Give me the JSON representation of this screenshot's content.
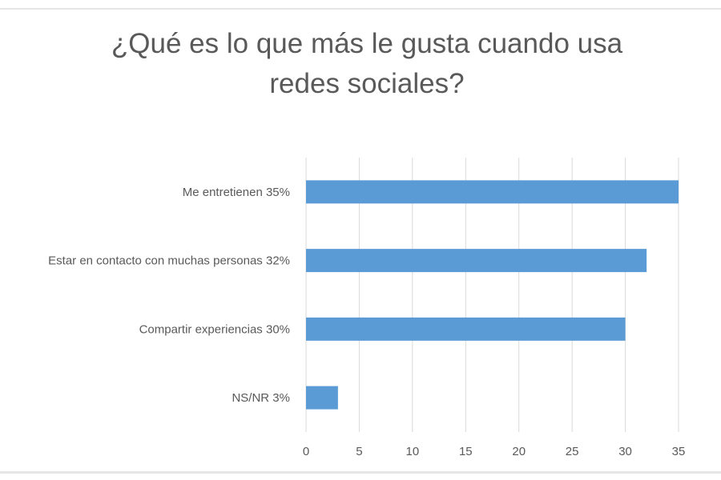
{
  "chart_data": {
    "type": "bar",
    "orientation": "horizontal",
    "title_lines": [
      "¿Qué es lo que más le gusta cuando usa",
      "redes sociales?"
    ],
    "categories": [
      "Me entretienen  35%",
      "Estar en contacto con muchas personas  32%",
      "Compartir experiencias  30%",
      "NS/NR  3%"
    ],
    "values": [
      35,
      32,
      30,
      3
    ],
    "xlim": [
      0,
      35
    ],
    "xticks": [
      "0",
      "5",
      "10",
      "15",
      "20",
      "25",
      "30",
      "35"
    ],
    "grid": true,
    "legend": "none",
    "colors": {
      "bar": "#5b9bd5",
      "grid": "#d9d9d9",
      "text": "#595959"
    }
  }
}
